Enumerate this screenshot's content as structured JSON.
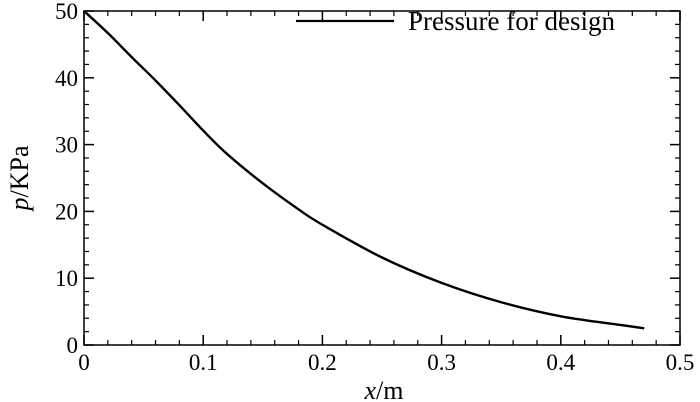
{
  "chart_data": {
    "type": "line",
    "title": "",
    "xlabel": {
      "italic": "x",
      "rest": "/m"
    },
    "ylabel": {
      "italic": "p",
      "rest": "/KPa"
    },
    "xlim": [
      0,
      0.5
    ],
    "ylim": [
      0,
      50
    ],
    "xticks": [
      0,
      0.1,
      0.2,
      0.3,
      0.4,
      0.5
    ],
    "xtick_labels": [
      "0",
      "0.1",
      "0.2",
      "0.3",
      "0.4",
      "0.5"
    ],
    "yticks": [
      0,
      10,
      20,
      30,
      40,
      50
    ],
    "ytick_labels": [
      "0",
      "10",
      "20",
      "30",
      "40",
      "50"
    ],
    "grid": false,
    "legend_position": "top-right",
    "series": [
      {
        "name": "Pressure for design",
        "color": "#000000",
        "x": [
          0,
          0.02,
          0.04,
          0.06,
          0.08,
          0.1,
          0.12,
          0.15,
          0.18,
          0.2,
          0.25,
          0.3,
          0.35,
          0.4,
          0.45,
          0.47
        ],
        "y": [
          50,
          46.7,
          43.1,
          39.6,
          35.9,
          32.1,
          28.6,
          24.2,
          20.3,
          18.0,
          13.1,
          9.3,
          6.4,
          4.3,
          3.0,
          2.5
        ]
      }
    ]
  }
}
